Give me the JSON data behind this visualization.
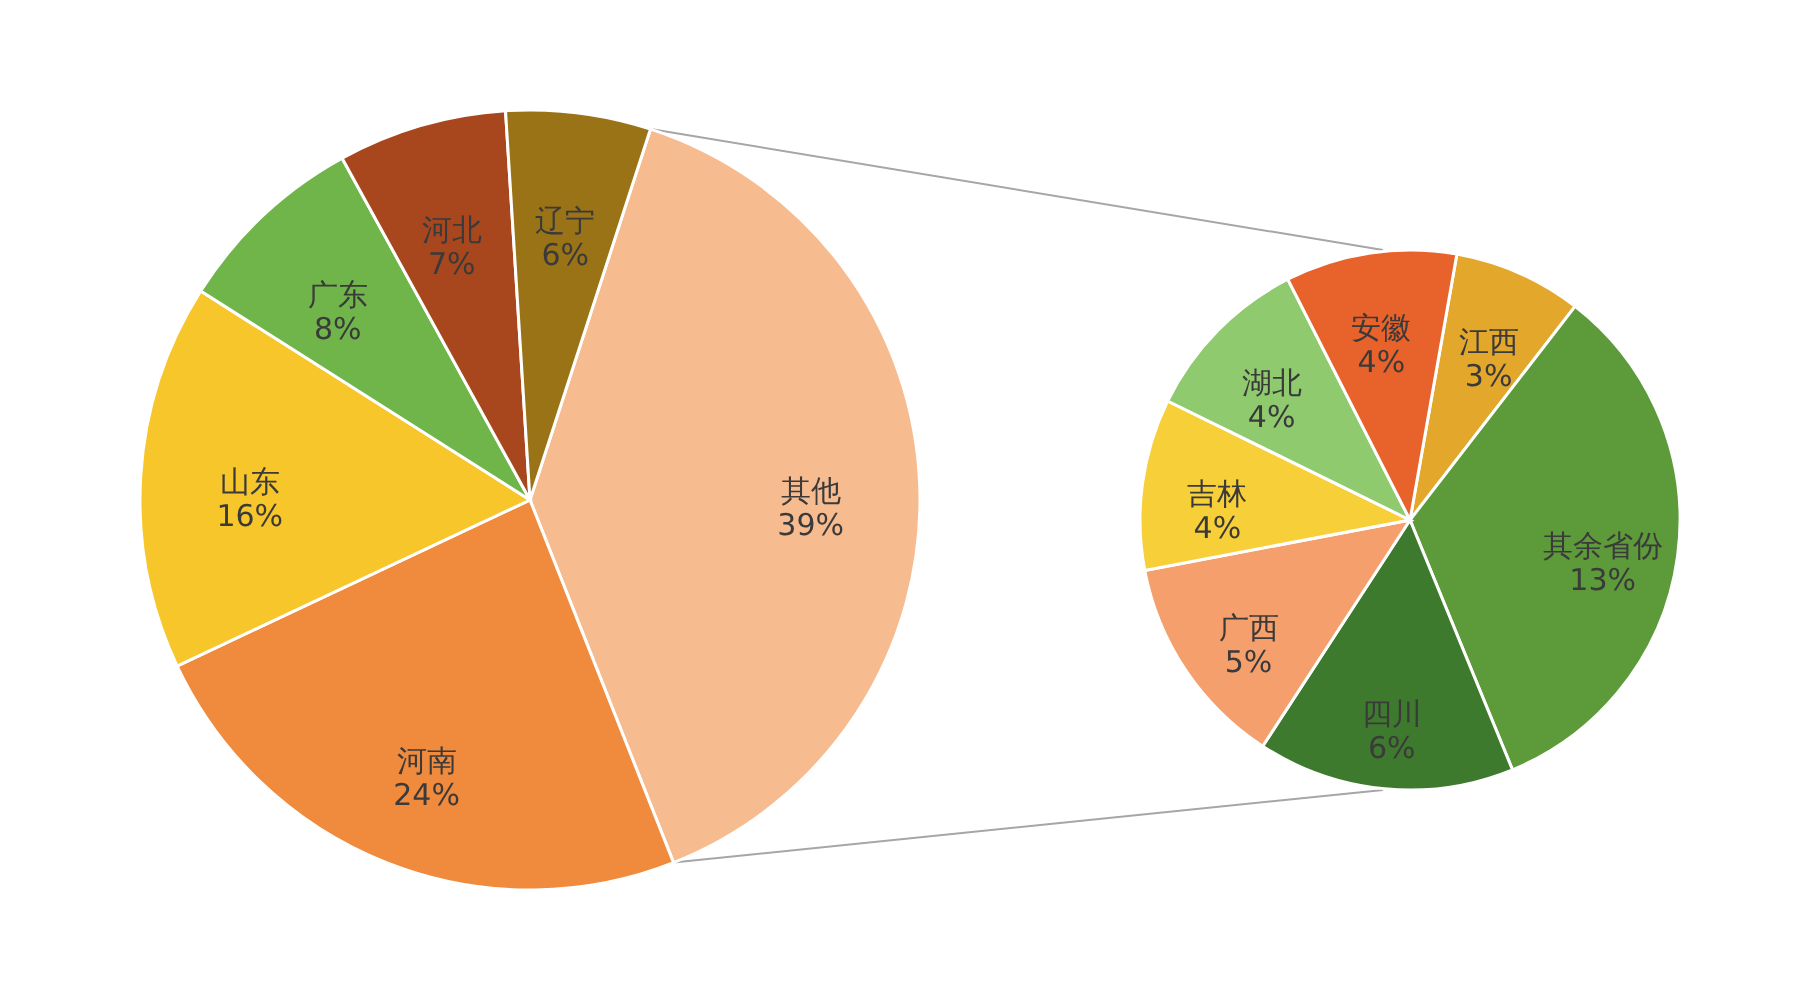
{
  "chart_data": [
    {
      "type": "pie",
      "categories": [
        "其他",
        "河南",
        "山东",
        "广东",
        "河北",
        "辽宁"
      ],
      "values": [
        39,
        24,
        16,
        8,
        7,
        6
      ],
      "value_labels": [
        "39%",
        "24%",
        "16%",
        "8%",
        "7%",
        "6%"
      ],
      "colors": [
        "#f7bb90",
        "#f08a3c",
        "#f7c62a",
        "#6fb54a",
        "#a8471e",
        "#9a7317"
      ]
    },
    {
      "type": "pie",
      "categories": [
        "江西",
        "其余省份",
        "四川",
        "广西",
        "吉林",
        "湖北",
        "安徽"
      ],
      "values": [
        3,
        13,
        6,
        5,
        4,
        4,
        4
      ],
      "value_labels": [
        "3%",
        "13%",
        "6%",
        "5%",
        "4%",
        "4%",
        "4%"
      ],
      "colors": [
        "#e3a82b",
        "#5d9a3a",
        "#3e7a2e",
        "#f5a06c",
        "#f7cf38",
        "#8fca6e",
        "#e8622b"
      ]
    }
  ]
}
